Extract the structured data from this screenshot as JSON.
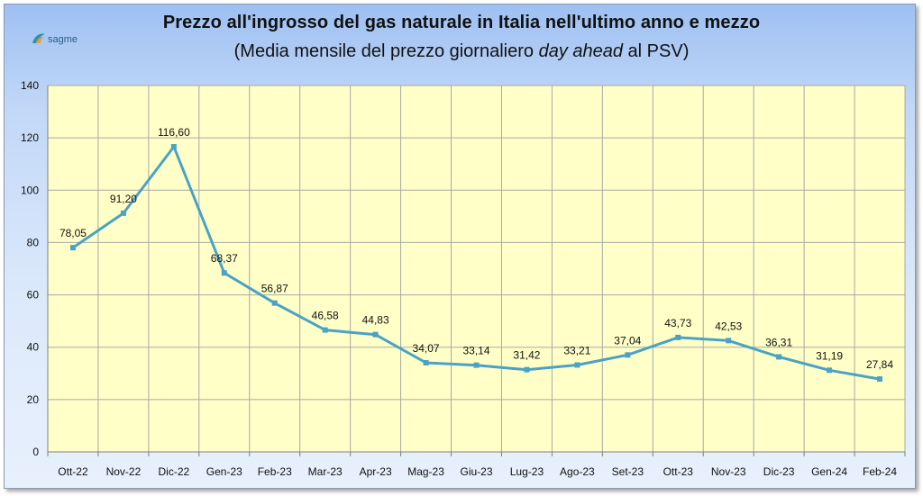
{
  "title": "Prezzo all'ingrosso del gas naturale in Italia nell'ultimo anno e mezzo",
  "subtitle_pre": "(Media mensile del prezzo giornaliero ",
  "subtitle_em": "day ahead",
  "subtitle_post": " al PSV)",
  "logo_text": "sagme",
  "colors": {
    "plot_bg": "#ffffc8",
    "line": "#4aa3c4",
    "grid": "#a8a8a8"
  },
  "chart_data": {
    "type": "line",
    "title": "Prezzo all'ingrosso del gas naturale in Italia nell'ultimo anno e mezzo",
    "subtitle": "(Media mensile del prezzo giornaliero day ahead al PSV)",
    "xlabel": "",
    "ylabel": "",
    "ylim": [
      0,
      140
    ],
    "yticks": [
      "0",
      "20",
      "40",
      "60",
      "80",
      "100",
      "120",
      "140"
    ],
    "grid": true,
    "legend": "none",
    "categories": [
      "Ott-22",
      "Nov-22",
      "Dic-22",
      "Gen-23",
      "Feb-23",
      "Mar-23",
      "Apr-23",
      "Mag-23",
      "Giu-23",
      "Lug-23",
      "Ago-23",
      "Set-23",
      "Ott-23",
      "Nov-23",
      "Dic-23",
      "Gen-24",
      "Feb-24"
    ],
    "values": [
      78.05,
      91.2,
      116.6,
      68.37,
      56.87,
      46.58,
      44.83,
      34.07,
      33.14,
      31.42,
      33.21,
      37.04,
      43.73,
      42.53,
      36.31,
      31.19,
      27.84
    ],
    "data_labels": [
      "78,05",
      "91,20",
      "116,60",
      "68,37",
      "56,87",
      "46,58",
      "44,83",
      "34,07",
      "33,14",
      "31,42",
      "33,21",
      "37,04",
      "43,73",
      "42,53",
      "36,31",
      "31,19",
      "27,84"
    ]
  }
}
